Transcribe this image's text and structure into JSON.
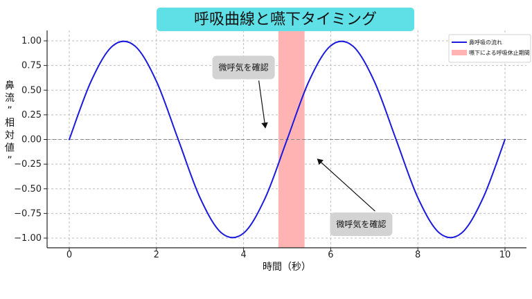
{
  "chart_data": {
    "type": "line",
    "title": "呼吸曲線と嚥下タイミング",
    "xlabel": "時間（秒）",
    "ylabel": "鼻流”相対値”",
    "xlim": [
      0,
      10
    ],
    "ylim": [
      -1.0,
      1.0
    ],
    "x_ticks": [
      "0",
      "2",
      "4",
      "6",
      "8",
      "10"
    ],
    "y_ticks": [
      "1.00",
      "0.75",
      "0.50",
      "0.25",
      "0.00",
      "−0.25",
      "−0.50",
      "−0.75",
      "−1.00"
    ],
    "grid": true,
    "legend_position": "top-right",
    "series": [
      {
        "name": "鼻呼吸の流れ",
        "x": [
          0,
          0.5,
          1.0,
          1.5,
          2.0,
          2.5,
          3.0,
          3.5,
          4.0,
          4.5,
          5.0,
          5.5,
          6.0,
          6.5,
          7.0,
          7.5,
          8.0,
          8.5,
          9.0,
          9.5,
          10.0
        ],
        "y": [
          0.0,
          0.59,
          0.95,
          0.95,
          0.59,
          0.0,
          -0.59,
          -0.95,
          -0.95,
          -0.59,
          0.0,
          0.59,
          0.95,
          0.95,
          0.59,
          0.0,
          -0.59,
          -0.95,
          -0.95,
          -0.59,
          0.0
        ],
        "color": "#1a1adf",
        "style": "solid"
      }
    ],
    "shaded_regions": [
      {
        "name": "嚥下による呼吸休止期間",
        "xmin": 4.8,
        "xmax": 5.4,
        "color": "#ffb3b3"
      }
    ],
    "reference_lines": [
      {
        "orientation": "horizontal",
        "value": 0.0,
        "style": "dashed",
        "color": "#888888"
      }
    ],
    "annotations": [
      {
        "text": "微呼気を確認",
        "arrow_to": [
          4.5,
          0.12
        ],
        "text_anchor": [
          4.0,
          0.73
        ]
      },
      {
        "text": "微呼気を確認",
        "arrow_to": [
          5.7,
          -0.2
        ],
        "text_anchor": [
          6.7,
          -0.86
        ]
      }
    ],
    "title_box_color": "#5fe0e6"
  }
}
